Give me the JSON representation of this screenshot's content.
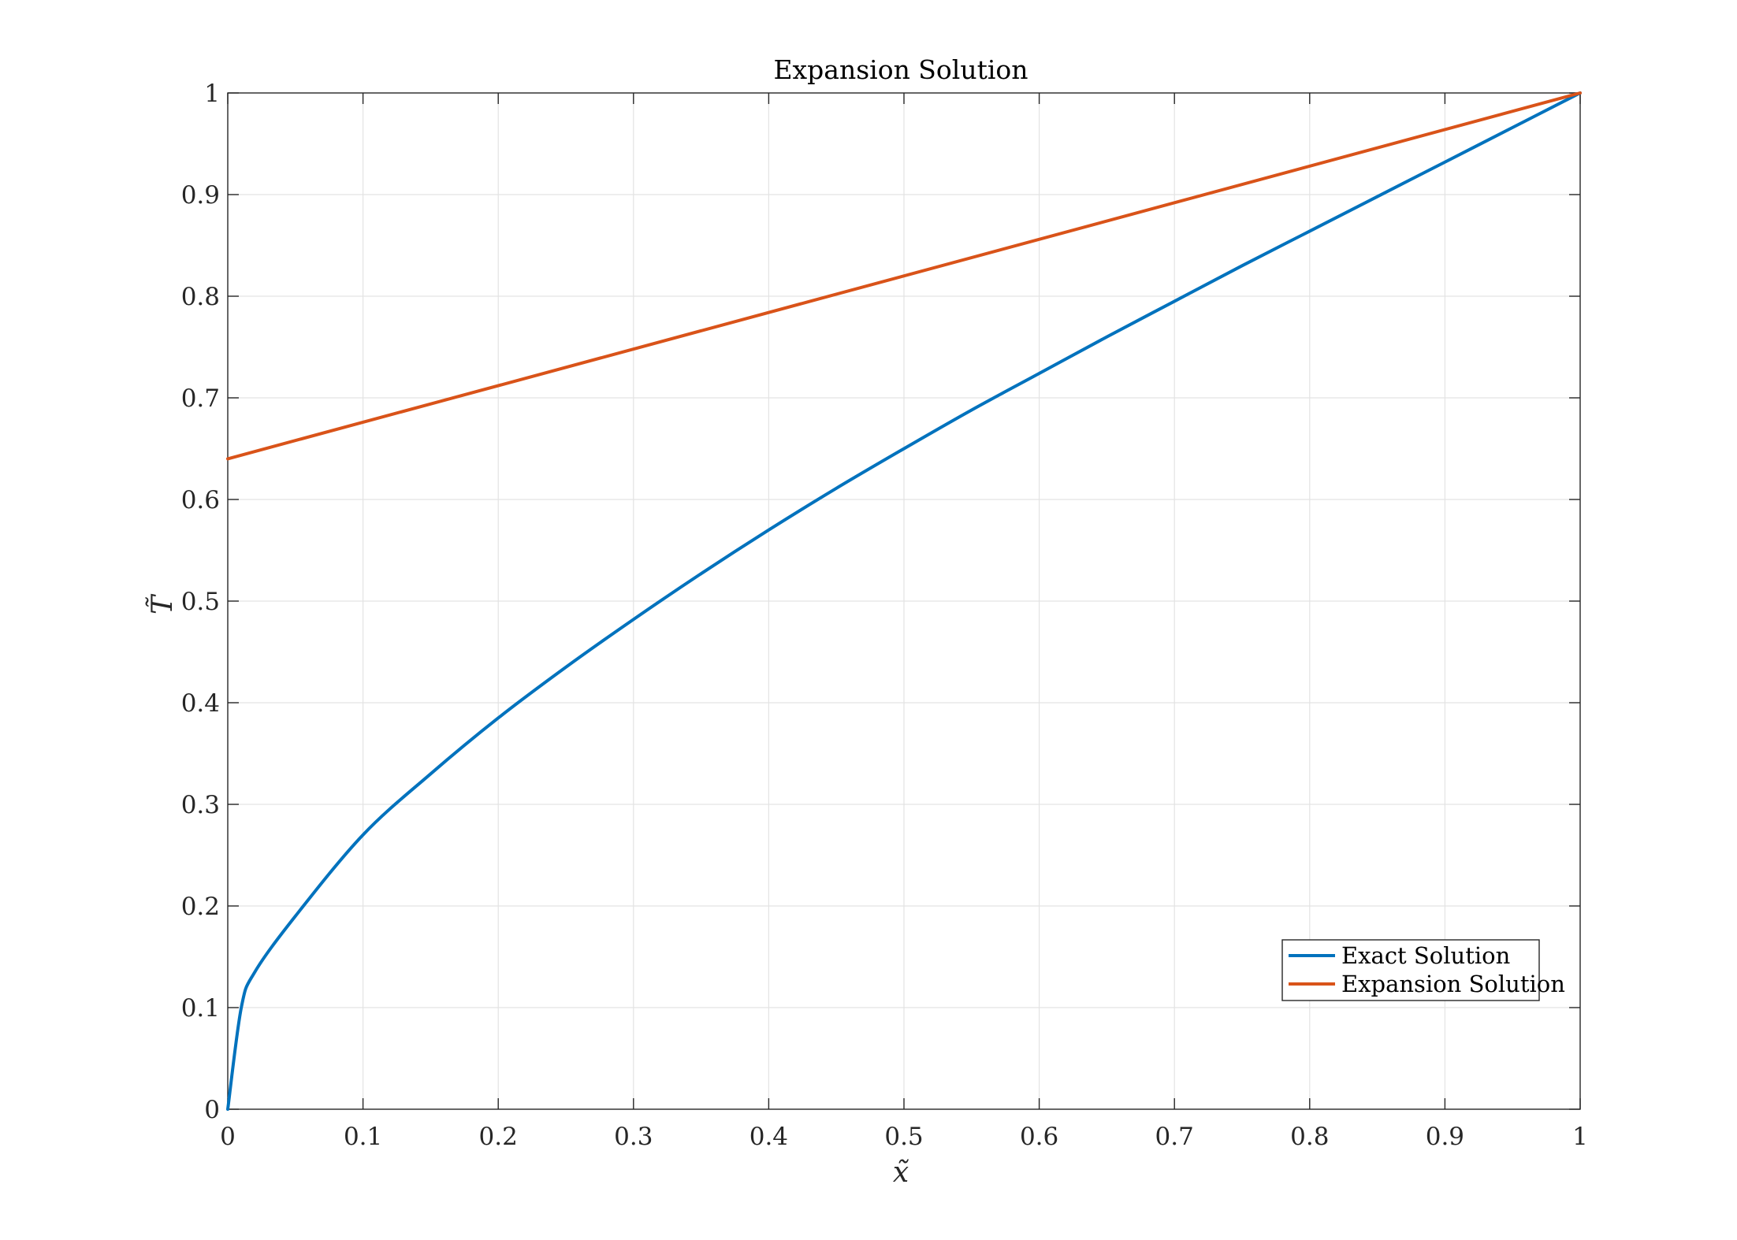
{
  "chart_data": {
    "type": "line",
    "title": "Expansion Solution",
    "xlabel": "x̃",
    "ylabel": "T̃",
    "xlim": [
      0,
      1
    ],
    "ylim": [
      0,
      1
    ],
    "xticks": [
      "0",
      "0.1",
      "0.2",
      "0.3",
      "0.4",
      "0.5",
      "0.6",
      "0.7",
      "0.8",
      "0.9",
      "1"
    ],
    "yticks": [
      "0",
      "0.1",
      "0.2",
      "0.3",
      "0.4",
      "0.5",
      "0.6",
      "0.7",
      "0.8",
      "0.9",
      "1"
    ],
    "grid": true,
    "legend_position": "bottom-right",
    "series": [
      {
        "name": "Exact Solution",
        "color": "#0072BD",
        "x": [
          0,
          0.01,
          0.02,
          0.05,
          0.1,
          0.15,
          0.2,
          0.25,
          0.3,
          0.35,
          0.4,
          0.45,
          0.5,
          0.55,
          0.6,
          0.65,
          0.7,
          0.75,
          0.8,
          0.85,
          0.9,
          0.95,
          1
        ],
        "y": [
          0,
          0.1,
          0.135,
          0.19,
          0.27,
          0.33,
          0.385,
          0.435,
          0.482,
          0.527,
          0.57,
          0.611,
          0.65,
          0.688,
          0.724,
          0.76,
          0.795,
          0.83,
          0.864,
          0.898,
          0.932,
          0.966,
          1
        ]
      },
      {
        "name": "Expansion Solution",
        "color": "#D95319",
        "x": [
          0,
          1
        ],
        "y": [
          0.64,
          1
        ]
      }
    ]
  }
}
